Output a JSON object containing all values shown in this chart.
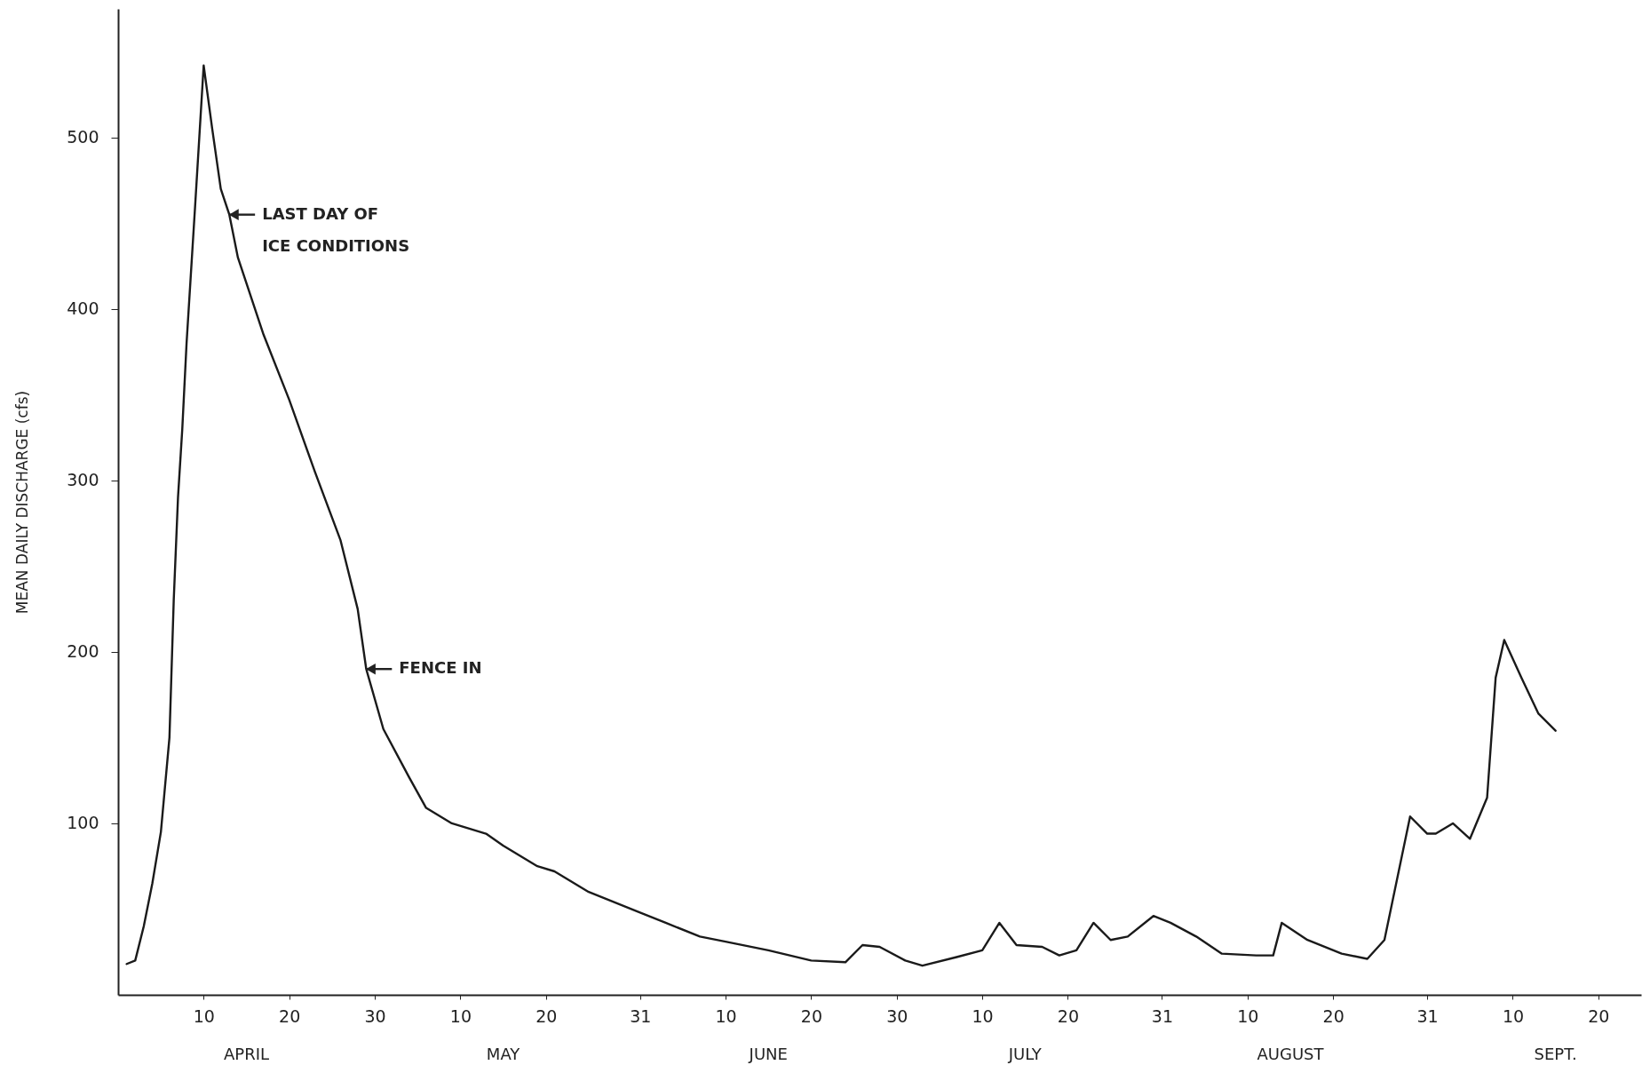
{
  "chart_data": {
    "type": "line",
    "ylabel": "MEAN DAILY DISCHARGE (cfs)",
    "x": [
      "--04-01",
      "--04-02",
      "--04-03",
      "--04-04",
      "--04-05",
      "--04-06",
      "--04-06T12:00",
      "--04-07",
      "--04-07T12:00",
      "--04-08",
      "--04-09",
      "--04-10",
      "--04-11",
      "--04-12",
      "--04-13",
      "--04-14",
      "--04-17",
      "--04-20",
      "--04-23",
      "--04-26",
      "--04-28",
      "--04-29",
      "--05-01",
      "--05-04",
      "--05-06",
      "--05-09",
      "--05-13",
      "--05-15",
      "--05-19",
      "--05-21",
      "--05-25",
      "--05-31",
      "--06-03",
      "--06-07",
      "--06-10",
      "--06-15",
      "--06-20",
      "--06-24",
      "--06-26",
      "--06-28",
      "--07-01",
      "--07-03",
      "--07-07",
      "--07-10",
      "--07-12",
      "--07-14",
      "--07-17",
      "--07-19",
      "--07-21",
      "--07-23",
      "--07-25",
      "--07-27",
      "--07-30",
      "--08-01",
      "--08-04",
      "--08-07",
      "--08-11",
      "--08-13",
      "--08-14",
      "--08-17",
      "--08-21",
      "--08-24",
      "--08-26",
      "--08-29",
      "--08-31",
      "--09-01",
      "--09-03",
      "--09-05",
      "--09-07",
      "--09-08",
      "--09-09",
      "--09-11",
      "--09-13",
      "--09-15"
    ],
    "series": [
      {
        "color": "#1a1a1a",
        "values": [
          18,
          20,
          40,
          65,
          95,
          150,
          230,
          290,
          330,
          380,
          460,
          542,
          505,
          470,
          455,
          430,
          385,
          347,
          305,
          265,
          225,
          190,
          155,
          127,
          109,
          100,
          94,
          87,
          75,
          72,
          60,
          48,
          42,
          34,
          31,
          26,
          20,
          19,
          29,
          28,
          20,
          17,
          22,
          26,
          42,
          29,
          28,
          23,
          26,
          42,
          32,
          34,
          46,
          42,
          34,
          24,
          23,
          23,
          42,
          32,
          24,
          21,
          32,
          104,
          94,
          94,
          100,
          91,
          115,
          185,
          207,
          185,
          164,
          154
        ]
      }
    ],
    "xlim": [
      "--03-31",
      "--09-25"
    ],
    "xticks": [
      {
        "value": "--04-10",
        "label": "10"
      },
      {
        "value": "--04-20",
        "label": "20"
      },
      {
        "value": "--04-30",
        "label": "30"
      },
      {
        "value": "--05-10",
        "label": "10"
      },
      {
        "value": "--05-20",
        "label": "20"
      },
      {
        "value": "--05-31",
        "label": "31"
      },
      {
        "value": "--06-10",
        "label": "10"
      },
      {
        "value": "--06-20",
        "label": "20"
      },
      {
        "value": "--06-30",
        "label": "30"
      },
      {
        "value": "--07-10",
        "label": "10"
      },
      {
        "value": "--07-20",
        "label": "20"
      },
      {
        "value": "--07-31",
        "label": "31"
      },
      {
        "value": "--08-10",
        "label": "10"
      },
      {
        "value": "--08-20",
        "label": "20"
      },
      {
        "value": "--08-31",
        "label": "31"
      },
      {
        "value": "--09-10",
        "label": "10"
      },
      {
        "value": "--09-20",
        "label": "20"
      }
    ],
    "ylim": [
      0,
      575
    ],
    "yticks": [
      100,
      200,
      300,
      400,
      500
    ],
    "annotations": [
      {
        "text": "LAST DAY OF\nICE CONDITIONS",
        "x": "--04-13",
        "y": 455
      },
      {
        "text": "FENCE IN",
        "x": "--04-29",
        "y": 190
      },
      "APRIL",
      "MAY",
      "JUNE",
      "JULY",
      "AUGUST",
      "SEPT."
    ],
    "line_style": "solid"
  }
}
